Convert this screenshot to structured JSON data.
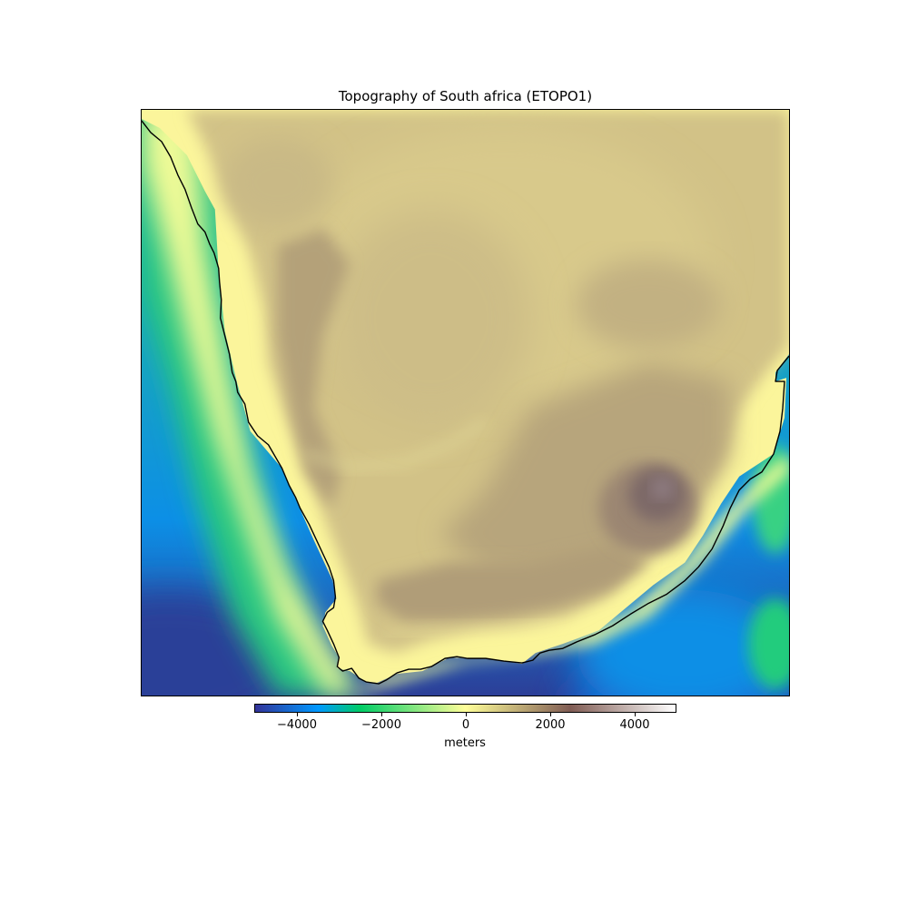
{
  "map": {
    "title": "Topography of South africa (ETOPO1)",
    "projection": "plate-carree",
    "features": [
      "elevation-raster",
      "coastline"
    ],
    "colormap": "terrain",
    "colors": {
      "deep_ocean": "#2c3f98",
      "ocean": "#0c8fe6",
      "shelf": "#24cc7d",
      "shallow": "#eefa96",
      "lowland": "#fcf498",
      "plateau": "#d3c283",
      "highland": "#aa9473",
      "mountain": "#7b6763",
      "coastline": "#000000"
    }
  },
  "colorbar": {
    "label": "meters",
    "vmin": -5000,
    "vmax": 5000,
    "ticks": [
      {
        "value": -4000,
        "label": "−4000"
      },
      {
        "value": -2000,
        "label": "−2000"
      },
      {
        "value": 0,
        "label": "0"
      },
      {
        "value": 2000,
        "label": "2000"
      },
      {
        "value": 4000,
        "label": "4000"
      }
    ]
  }
}
